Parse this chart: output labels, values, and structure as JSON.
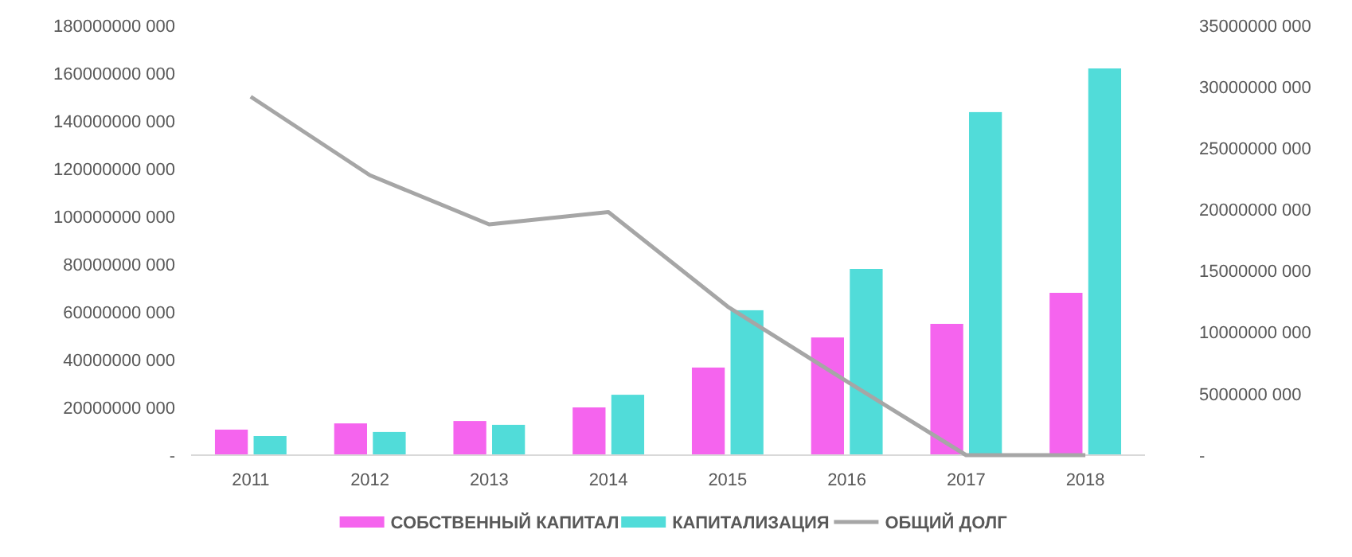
{
  "chart_data": {
    "type": "bar",
    "categories": [
      "2011",
      "2012",
      "2013",
      "2014",
      "2015",
      "2016",
      "2017",
      "2018"
    ],
    "series": [
      {
        "name": "СОБСТВЕННЫЙ КАПИТАЛ",
        "color": "#f564ee",
        "values": [
          10700000000,
          13300000000,
          14300000000,
          20000000000,
          36700000000,
          49300000000,
          55000000000,
          68000000000
        ]
      },
      {
        "name": "КАПИТАЛИЗАЦИЯ",
        "color": "#51dcd9",
        "values": [
          8000000000,
          9700000000,
          12700000000,
          25300000000,
          60700000000,
          78000000000,
          143700000000,
          162000000000
        ]
      },
      {
        "name": "ОБЩИЙ ДОЛГ",
        "type": "line",
        "axis": "y2",
        "color": "#a6a6a6",
        "values": [
          29200000000,
          22800000000,
          18800000000,
          19800000000,
          12100000000,
          6000000000,
          0,
          0
        ]
      }
    ],
    "ylim": [
      0,
      180000000000
    ],
    "yticks": [
      {
        "value": 0,
        "label": "-"
      },
      {
        "value": 20000000000,
        "label": "20000000 000"
      },
      {
        "value": 40000000000,
        "label": "40000000 000"
      },
      {
        "value": 60000000000,
        "label": "60000000 000"
      },
      {
        "value": 80000000000,
        "label": "80000000 000"
      },
      {
        "value": 100000000000,
        "label": "100000000 000"
      },
      {
        "value": 120000000000,
        "label": "120000000 000"
      },
      {
        "value": 140000000000,
        "label": "140000000 000"
      },
      {
        "value": 160000000000,
        "label": "160000000 000"
      },
      {
        "value": 180000000000,
        "label": "180000000 000"
      }
    ],
    "y2lim": [
      0,
      35000000000
    ],
    "y2ticks": [
      {
        "value": 0,
        "label": "-"
      },
      {
        "value": 5000000000,
        "label": "5000000 000"
      },
      {
        "value": 10000000000,
        "label": "10000000 000"
      },
      {
        "value": 15000000000,
        "label": "15000000 000"
      },
      {
        "value": 20000000000,
        "label": "20000000 000"
      },
      {
        "value": 25000000000,
        "label": "25000000 000"
      },
      {
        "value": 30000000000,
        "label": "30000000 000"
      },
      {
        "value": 35000000000,
        "label": "35000000 000"
      }
    ],
    "grid": false,
    "legend": "bottom",
    "marker": "none",
    "line_style": "solid"
  }
}
